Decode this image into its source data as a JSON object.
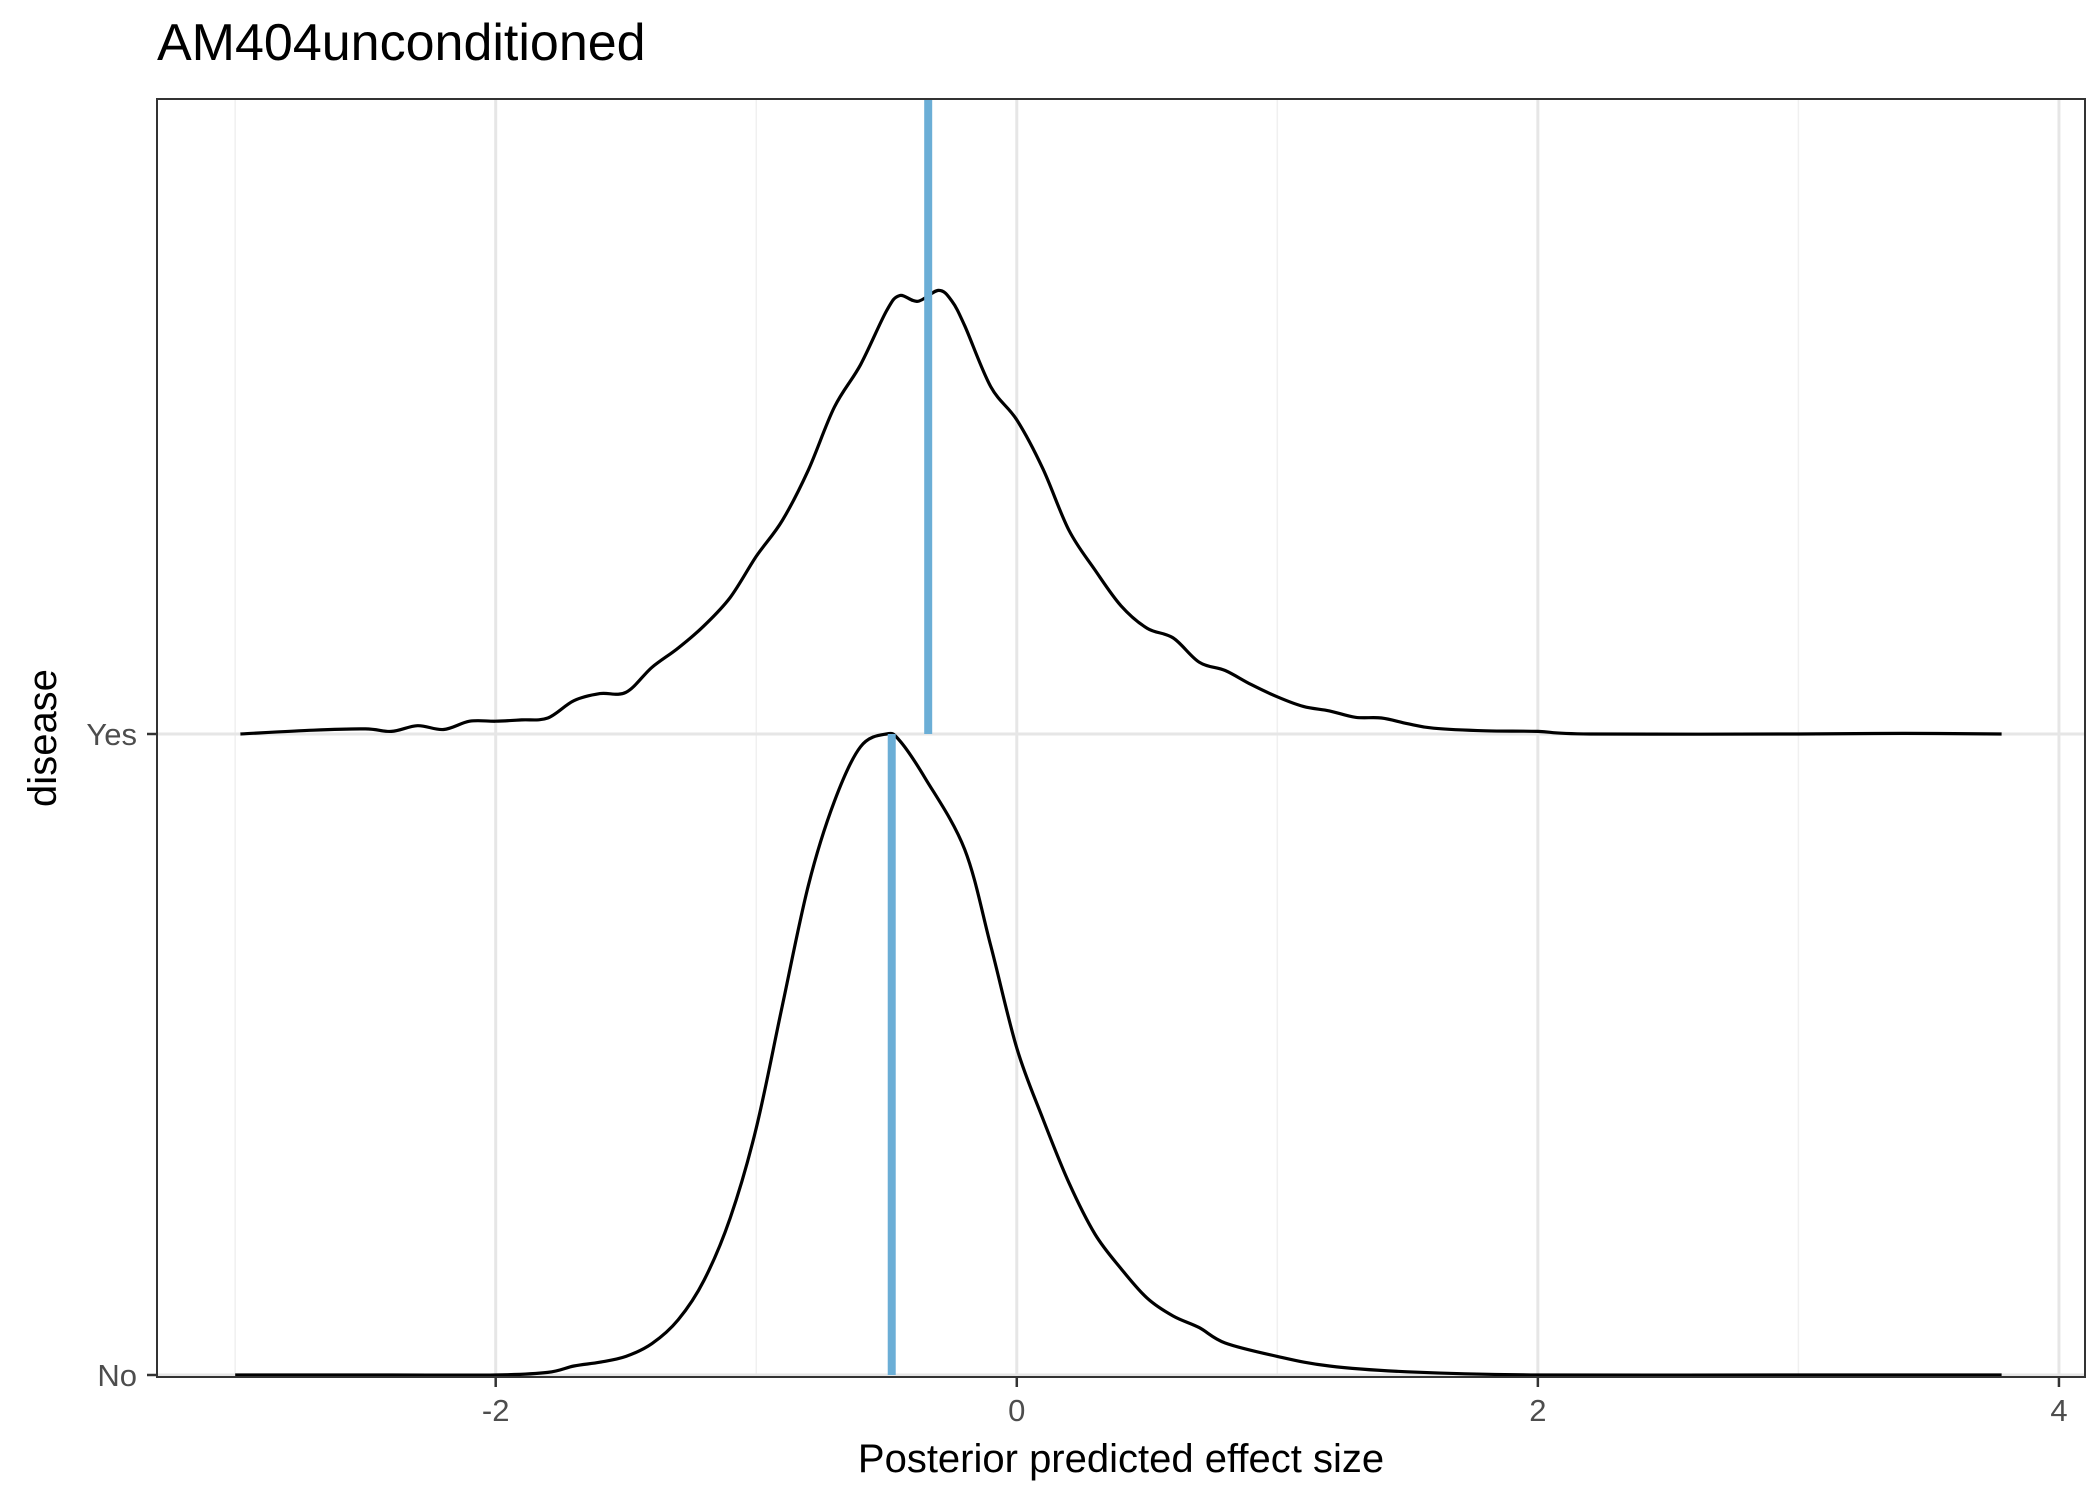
{
  "chart_data": {
    "type": "ridgeline-density",
    "title": "AM404unconditioned",
    "xlabel": "Posterior predicted effect size",
    "ylabel": "disease",
    "xlim": [
      -3.3,
      4.1
    ],
    "x_ticks": [
      -2,
      0,
      2,
      4
    ],
    "x_tick_labels": [
      "-2",
      "0",
      "2",
      "4"
    ],
    "x_minor_ticks": [
      -3,
      -1,
      1,
      3
    ],
    "categories": [
      "No",
      "Yes"
    ],
    "grid": true,
    "vline_color": "#6baed6",
    "line_color": "#000000",
    "series": [
      {
        "name": "Yes",
        "mean_line": -0.34,
        "density": [
          [
            -2.98,
            0.0
          ],
          [
            -2.7,
            0.006
          ],
          [
            -2.5,
            0.008
          ],
          [
            -2.4,
            0.004
          ],
          [
            -2.3,
            0.013
          ],
          [
            -2.2,
            0.007
          ],
          [
            -2.1,
            0.02
          ],
          [
            -2.0,
            0.02
          ],
          [
            -1.9,
            0.022
          ],
          [
            -1.8,
            0.025
          ],
          [
            -1.7,
            0.052
          ],
          [
            -1.6,
            0.063
          ],
          [
            -1.5,
            0.065
          ],
          [
            -1.4,
            0.104
          ],
          [
            -1.3,
            0.134
          ],
          [
            -1.2,
            0.169
          ],
          [
            -1.1,
            0.213
          ],
          [
            -1.0,
            0.277
          ],
          [
            -0.9,
            0.333
          ],
          [
            -0.8,
            0.412
          ],
          [
            -0.7,
            0.51
          ],
          [
            -0.6,
            0.576
          ],
          [
            -0.5,
            0.66
          ],
          [
            -0.45,
            0.684
          ],
          [
            -0.38,
            0.675
          ],
          [
            -0.3,
            0.692
          ],
          [
            -0.25,
            0.676
          ],
          [
            -0.2,
            0.637
          ],
          [
            -0.1,
            0.542
          ],
          [
            0.0,
            0.49
          ],
          [
            0.1,
            0.414
          ],
          [
            0.2,
            0.318
          ],
          [
            0.3,
            0.256
          ],
          [
            0.4,
            0.2
          ],
          [
            0.5,
            0.165
          ],
          [
            0.6,
            0.15
          ],
          [
            0.7,
            0.112
          ],
          [
            0.8,
            0.099
          ],
          [
            0.9,
            0.077
          ],
          [
            1.0,
            0.058
          ],
          [
            1.1,
            0.043
          ],
          [
            1.2,
            0.036
          ],
          [
            1.3,
            0.026
          ],
          [
            1.4,
            0.025
          ],
          [
            1.5,
            0.016
          ],
          [
            1.6,
            0.009
          ],
          [
            1.8,
            0.005
          ],
          [
            2.0,
            0.004
          ],
          [
            2.2,
            0.0
          ],
          [
            3.0,
            0.0
          ],
          [
            3.4,
            0.001
          ],
          [
            3.78,
            0.0
          ]
        ]
      },
      {
        "name": "No",
        "mean_line": -0.48,
        "density": [
          [
            -3.0,
            0.0
          ],
          [
            -2.4,
            0.0
          ],
          [
            -2.0,
            0.0
          ],
          [
            -1.8,
            0.004
          ],
          [
            -1.7,
            0.014
          ],
          [
            -1.6,
            0.02
          ],
          [
            -1.5,
            0.029
          ],
          [
            -1.4,
            0.049
          ],
          [
            -1.3,
            0.086
          ],
          [
            -1.2,
            0.148
          ],
          [
            -1.1,
            0.245
          ],
          [
            -1.0,
            0.385
          ],
          [
            -0.9,
            0.576
          ],
          [
            -0.8,
            0.764
          ],
          [
            -0.7,
            0.895
          ],
          [
            -0.6,
            0.98
          ],
          [
            -0.5,
            1.0
          ],
          [
            -0.45,
            0.99
          ],
          [
            -0.35,
            0.93
          ],
          [
            -0.2,
            0.82
          ],
          [
            -0.1,
            0.67
          ],
          [
            0.0,
            0.51
          ],
          [
            0.1,
            0.4
          ],
          [
            0.2,
            0.3
          ],
          [
            0.3,
            0.22
          ],
          [
            0.4,
            0.166
          ],
          [
            0.5,
            0.12
          ],
          [
            0.6,
            0.092
          ],
          [
            0.7,
            0.074
          ],
          [
            0.8,
            0.05
          ],
          [
            1.0,
            0.029
          ],
          [
            1.2,
            0.014
          ],
          [
            1.5,
            0.005
          ],
          [
            2.0,
            0.0
          ],
          [
            3.0,
            0.0
          ],
          [
            3.78,
            0.0
          ]
        ]
      }
    ]
  }
}
